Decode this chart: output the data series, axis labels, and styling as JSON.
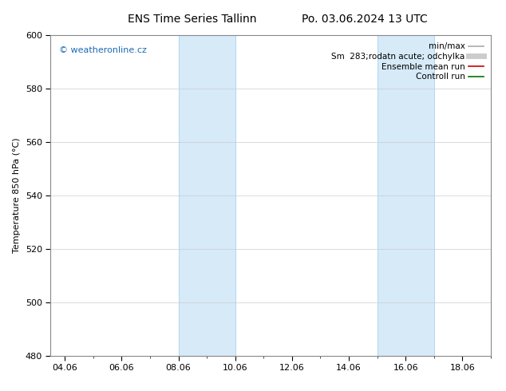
{
  "title": "ENS Time Series Tallinn",
  "title2": "Po. 03.06.2024 13 UTC",
  "ylabel": "Temperature 850 hPa (°C)",
  "ylim": [
    480,
    600
  ],
  "yticks": [
    480,
    500,
    520,
    540,
    560,
    580,
    600
  ],
  "xtick_labels": [
    "04.06",
    "06.06",
    "08.06",
    "10.06",
    "12.06",
    "14.06",
    "16.06",
    "18.06"
  ],
  "xtick_days": [
    4,
    6,
    8,
    10,
    12,
    14,
    16,
    18
  ],
  "xlim": [
    3.5,
    19.0
  ],
  "shade_bands": [
    {
      "xstart_day": 8.0,
      "xend_day": 10.0
    },
    {
      "xstart_day": 15.0,
      "xend_day": 17.0
    }
  ],
  "shade_color": "#d6eaf8",
  "band_edge_color": "#afd6f0",
  "watermark": "© weatheronline.cz",
  "watermark_color": "#1a6ab5",
  "legend_items": [
    {
      "label": "min/max",
      "color": "#aaaaaa",
      "lw": 1.2
    },
    {
      "label": "Sm  283;rodatn acute; odchylka",
      "color": "#cccccc",
      "lw": 5
    },
    {
      "label": "Ensemble mean run",
      "color": "#cc0000",
      "lw": 1.2
    },
    {
      "label": "Controll run",
      "color": "#007700",
      "lw": 1.2
    }
  ],
  "bg_color": "#ffffff",
  "plot_bg_color": "#ffffff",
  "grid_color": "#cccccc",
  "title_fontsize": 10,
  "ylabel_fontsize": 8,
  "tick_fontsize": 8,
  "legend_fontsize": 7.5,
  "watermark_fontsize": 8
}
